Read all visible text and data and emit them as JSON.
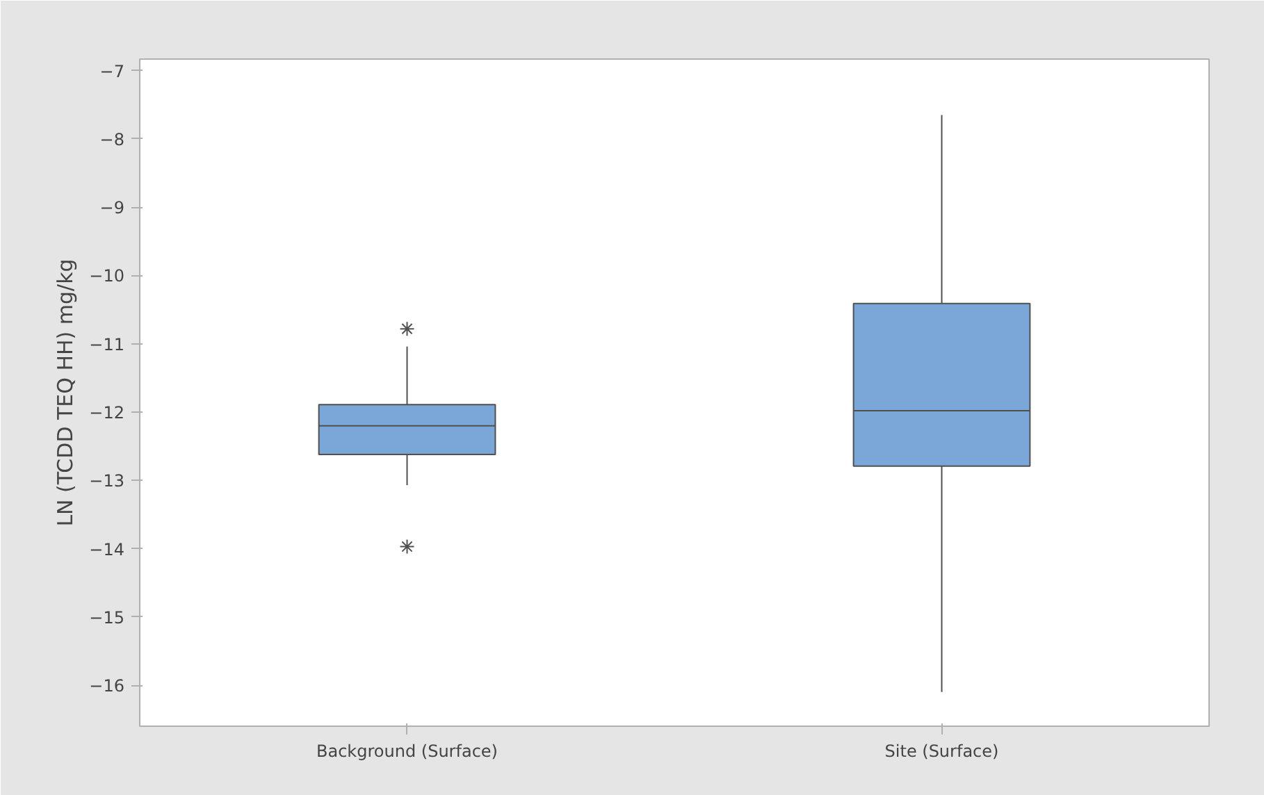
{
  "chart_data": {
    "type": "box",
    "ylabel": "LN (TCDD TEQ HH) mg/kg",
    "categories": [
      "Background (Surface)",
      "Site (Surface)"
    ],
    "color": "#7ba7d8",
    "boxes": [
      {
        "low": -13.07,
        "q1": -12.62,
        "median": -12.2,
        "q3": -11.89,
        "high": -11.04,
        "outliers": [
          -10.78,
          -13.97
        ]
      },
      {
        "low": -16.1,
        "q1": -12.79,
        "median": -11.98,
        "q3": -10.41,
        "high": -7.65
      }
    ],
    "ylim": [
      -16.6,
      -6.83
    ],
    "yticks": [
      -16,
      -15,
      -14,
      -13,
      -12,
      -11,
      -10,
      -9,
      -8,
      -7
    ],
    "grid": false
  }
}
